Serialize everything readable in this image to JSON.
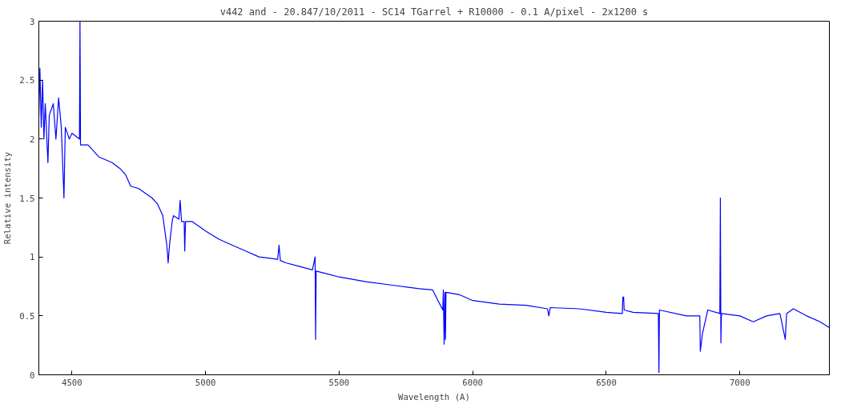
{
  "chart_data": {
    "type": "line",
    "title": "v442 and - 20.847/10/2011 - SC14 TGarrel + R10000 - 0.1 A/pixel - 2x1200 s",
    "xlabel": "Wavelength (A)",
    "ylabel": "Relative intensity",
    "x": [
      4376,
      4380,
      4385,
      4390,
      4395,
      4400,
      4410,
      4415,
      4430,
      4440,
      4450,
      4460,
      4470,
      4475,
      4490,
      4500,
      4528,
      4530,
      4532,
      4560,
      4600,
      4650,
      4680,
      4700,
      4720,
      4750,
      4800,
      4820,
      4840,
      4855,
      4860,
      4865,
      4875,
      4880,
      4900,
      4905,
      4910,
      4920,
      4922,
      4925,
      4950,
      5000,
      5050,
      5100,
      5150,
      5200,
      5270,
      5275,
      5280,
      5300,
      5350,
      5400,
      5410,
      5412,
      5414,
      5450,
      5500,
      5600,
      5700,
      5800,
      5850,
      5888,
      5890,
      5893,
      5896,
      5898,
      5900,
      5950,
      6000,
      6100,
      6200,
      6280,
      6285,
      6290,
      6400,
      6500,
      6560,
      6562,
      6565,
      6567,
      6600,
      6695,
      6697,
      6699,
      6800,
      6850,
      6852,
      6860,
      6870,
      6880,
      6925,
      6927,
      6929,
      6931,
      7000,
      7050,
      7100,
      7150,
      7170,
      7175,
      7200,
      7250,
      7300,
      7335
    ],
    "series": [
      {
        "color": "#0000ff",
        "values": [
          2.2,
          2.6,
          2.1,
          2.5,
          2.0,
          2.3,
          1.8,
          2.2,
          2.3,
          2.0,
          2.35,
          2.1,
          1.5,
          2.1,
          2.0,
          2.05,
          2.0,
          3.0,
          1.95,
          1.95,
          1.85,
          1.8,
          1.75,
          1.7,
          1.6,
          1.58,
          1.5,
          1.45,
          1.35,
          1.1,
          0.95,
          1.1,
          1.3,
          1.35,
          1.32,
          1.48,
          1.3,
          1.3,
          1.05,
          1.3,
          1.3,
          1.22,
          1.15,
          1.1,
          1.05,
          1.0,
          0.98,
          1.1,
          0.97,
          0.95,
          0.92,
          0.89,
          1.0,
          0.3,
          0.88,
          0.86,
          0.83,
          0.79,
          0.76,
          0.73,
          0.72,
          0.55,
          0.72,
          0.26,
          0.7,
          0.3,
          0.7,
          0.68,
          0.63,
          0.6,
          0.59,
          0.56,
          0.5,
          0.57,
          0.56,
          0.53,
          0.52,
          0.66,
          0.66,
          0.55,
          0.53,
          0.52,
          0.02,
          0.55,
          0.5,
          0.5,
          0.2,
          0.35,
          0.45,
          0.55,
          0.52,
          1.5,
          0.27,
          0.52,
          0.5,
          0.45,
          0.5,
          0.52,
          0.3,
          0.52,
          0.56,
          0.5,
          0.45,
          0.4
        ]
      }
    ],
    "xlim": [
      4376,
      7335
    ],
    "ylim": [
      0,
      3
    ],
    "xticks": [
      4500,
      5000,
      5500,
      6000,
      6500,
      7000
    ],
    "yticks": [
      0,
      0.5,
      1,
      1.5,
      2,
      2.5,
      3
    ],
    "grid": false
  }
}
